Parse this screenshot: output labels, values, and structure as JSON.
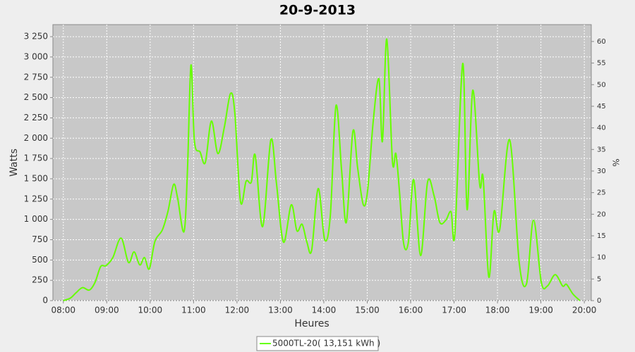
{
  "chart_data": {
    "type": "line",
    "title": "20-9-2013",
    "x_label": "Heures",
    "y_label": "Watts",
    "y2_label": "%",
    "xlim": [
      7.76,
      20.16
    ],
    "xticks": [
      {
        "value": 8,
        "label": "08:00"
      },
      {
        "value": 9,
        "label": "09:00"
      },
      {
        "value": 10,
        "label": "10:00"
      },
      {
        "value": 11,
        "label": "11:00"
      },
      {
        "value": 12,
        "label": "12:00"
      },
      {
        "value": 13,
        "label": "13:00"
      },
      {
        "value": 14,
        "label": "14:00"
      },
      {
        "value": 15,
        "label": "15:00"
      },
      {
        "value": 16,
        "label": "16:00"
      },
      {
        "value": 17,
        "label": "17:00"
      },
      {
        "value": 18,
        "label": "18:00"
      },
      {
        "value": 19,
        "label": "19:00"
      },
      {
        "value": 20,
        "label": "20:00"
      }
    ],
    "ylim": [
      0,
      3398
    ],
    "yticks": [
      0,
      250,
      500,
      750,
      {
        "value": 1000,
        "label": "1 000"
      },
      {
        "value": 1250,
        "label": "1 250"
      },
      {
        "value": 1500,
        "label": "1 500"
      },
      {
        "value": 1750,
        "label": "1 750"
      },
      {
        "value": 2000,
        "label": "2 000"
      },
      {
        "value": 2250,
        "label": "2 250"
      },
      {
        "value": 2500,
        "label": "2 500"
      },
      {
        "value": 2750,
        "label": "2 750"
      },
      {
        "value": 3000,
        "label": "3 000"
      },
      {
        "value": 3250,
        "label": "3 250"
      }
    ],
    "y2lim": [
      0,
      63.9
    ],
    "y2ticks": [
      0,
      5,
      10,
      15,
      20,
      25,
      30,
      35,
      40,
      45,
      50,
      55,
      60
    ],
    "grid": true,
    "legend": "bottom",
    "x": [
      8.0,
      8.16,
      8.29,
      8.44,
      8.6,
      8.73,
      8.86,
      8.98,
      9.14,
      9.33,
      9.5,
      9.63,
      9.76,
      9.87,
      9.98,
      10.11,
      10.28,
      10.41,
      10.54,
      10.63,
      10.78,
      10.86,
      10.94,
      11.02,
      11.15,
      11.27,
      11.41,
      11.56,
      11.71,
      11.85,
      11.95,
      12.08,
      12.21,
      12.33,
      12.42,
      12.59,
      12.78,
      12.91,
      13.07,
      13.25,
      13.38,
      13.5,
      13.61,
      13.72,
      13.87,
      14.02,
      14.15,
      14.28,
      14.41,
      14.52,
      14.67,
      14.78,
      14.91,
      15.01,
      15.14,
      15.27,
      15.35,
      15.45,
      15.58,
      15.66,
      15.74,
      15.84,
      15.95,
      16.07,
      16.23,
      16.39,
      16.54,
      16.67,
      16.81,
      16.93,
      17.02,
      17.2,
      17.3,
      17.43,
      17.59,
      17.67,
      17.8,
      17.92,
      18.05,
      18.28,
      18.5,
      18.67,
      18.83,
      19.01,
      19.15,
      19.33,
      19.5,
      19.59,
      19.74,
      19.9
    ],
    "series": [
      {
        "name": "5000TL-20( 13,151 kWh )",
        "color": "#66ff00",
        "values": [
          0,
          30,
          95,
          160,
          130,
          225,
          420,
          430,
          530,
          770,
          470,
          600,
          440,
          530,
          390,
          730,
          870,
          1100,
          1430,
          1270,
          850,
          1620,
          2900,
          1960,
          1830,
          1700,
          2210,
          1810,
          2140,
          2550,
          2310,
          1220,
          1470,
          1460,
          1790,
          910,
          1980,
          1440,
          720,
          1180,
          860,
          940,
          720,
          620,
          1380,
          750,
          1050,
          2400,
          1600,
          965,
          2085,
          1630,
          1180,
          1360,
          2220,
          2730,
          1960,
          3220,
          1720,
          1810,
          1360,
          700,
          730,
          1490,
          555,
          1460,
          1290,
          965,
          990,
          1095,
          830,
          2920,
          1120,
          2590,
          1430,
          1510,
          290,
          1095,
          870,
          1980,
          470,
          210,
          990,
          225,
          180,
          320,
          180,
          200,
          80,
          0
        ]
      }
    ]
  }
}
